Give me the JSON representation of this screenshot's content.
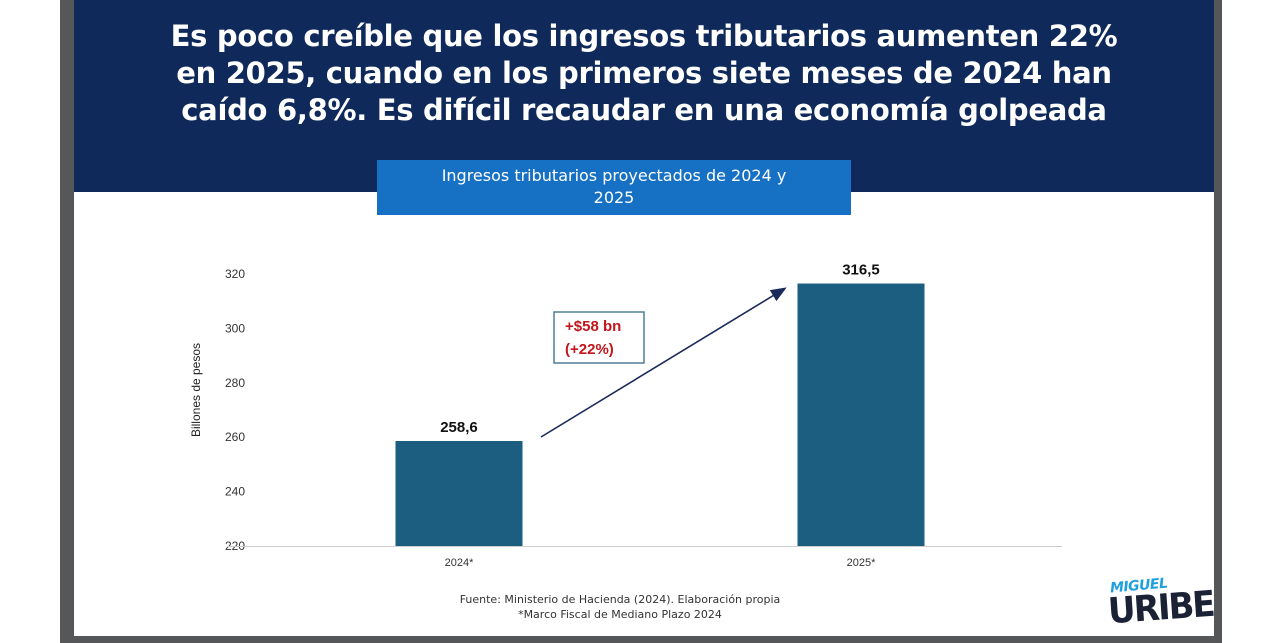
{
  "headline": {
    "line1": "Es poco creíble que los ingresos tributarios aumenten 22%",
    "line2": "en 2025, cuando en los primeros siete meses de 2024 han",
    "line3": "caído 6,8%. Es difícil recaudar en una economía golpeada"
  },
  "colors": {
    "header": "#0f2a5a",
    "title_box": "#1670c4",
    "bars": "#1b5e80",
    "annotation_text": "#c0161c",
    "arrow": "#1a2a5a"
  },
  "chart_data": {
    "type": "bar",
    "title_line1": "Ingresos tributarios proyectados de 2024 y",
    "title_line2": "2025",
    "categories": [
      "2024*",
      "2025*"
    ],
    "values": [
      258.6,
      316.5
    ],
    "data_labels": [
      "258,6",
      "316,5"
    ],
    "ylabel": "Billones de pesos",
    "xlabel": "",
    "ylim": [
      220,
      320
    ],
    "yticks": [
      "220",
      "240",
      "260",
      "280",
      "300",
      "320"
    ],
    "grid": false,
    "annotation": {
      "line1": "+$58 bn",
      "line2": "(+22%)"
    }
  },
  "source": {
    "line1": "Fuente: Ministerio de Hacienda (2024). Elaboración propia",
    "line2": "*Marco Fiscal de Mediano Plazo 2024"
  },
  "logo": {
    "top": "MIGUEL",
    "bottom": "URIBE"
  }
}
